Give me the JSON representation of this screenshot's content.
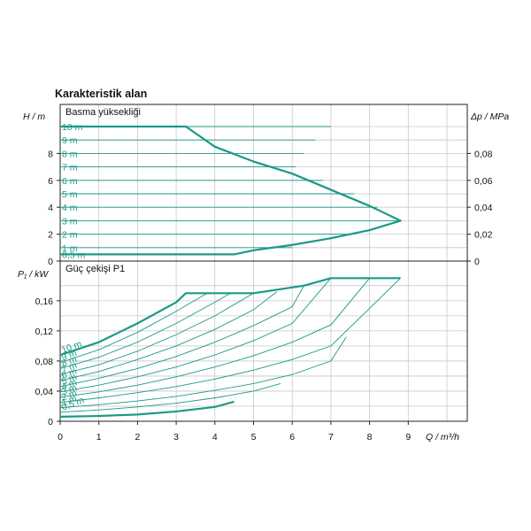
{
  "chart_data": [
    {
      "type": "line",
      "panel": "head",
      "title": "Karakteristik alan",
      "subtitle": "Basma yüksekliği",
      "xlabel": "Q / m³/h",
      "ylabel": "H / m",
      "ylabel_right": "Δp / MPa",
      "xlim": [
        0,
        10.5
      ],
      "ylim": [
        0,
        10.5
      ],
      "x_ticks": [
        "0",
        "1",
        "2",
        "3",
        "4",
        "5",
        "6",
        "7",
        "8",
        "9"
      ],
      "y_ticks": [
        {
          "v": 0,
          "label": "0"
        },
        {
          "v": 2,
          "label": "2"
        },
        {
          "v": 4,
          "label": "4"
        },
        {
          "v": 6,
          "label": "6"
        },
        {
          "v": 8,
          "label": "8"
        }
      ],
      "y_ticks_right": [
        {
          "v": 0,
          "label": "0"
        },
        {
          "v": 2,
          "label": "0,02"
        },
        {
          "v": 4,
          "label": "0,04"
        },
        {
          "v": 6,
          "label": "0,06"
        },
        {
          "v": 8,
          "label": "0,08"
        }
      ],
      "grid": true,
      "color": "#1a9a86",
      "series": [
        {
          "name": "10 m",
          "x": [
            0,
            7.0
          ],
          "y": [
            10,
            10
          ]
        },
        {
          "name": "9 m",
          "x": [
            0,
            6.6
          ],
          "y": [
            9,
            9
          ]
        },
        {
          "name": "8 m",
          "x": [
            0,
            6.3
          ],
          "y": [
            8,
            8
          ]
        },
        {
          "name": "7 m",
          "x": [
            0,
            6.1
          ],
          "y": [
            7,
            7
          ]
        },
        {
          "name": "6 m",
          "x": [
            0,
            6.8
          ],
          "y": [
            6,
            6
          ]
        },
        {
          "name": "5 m",
          "x": [
            0,
            7.6
          ],
          "y": [
            5,
            5
          ]
        },
        {
          "name": "4 m",
          "x": [
            0,
            8.2
          ],
          "y": [
            4,
            4
          ]
        },
        {
          "name": "3 m",
          "x": [
            0,
            8.8
          ],
          "y": [
            3,
            3
          ]
        },
        {
          "name": "2 m",
          "x": [
            0,
            7.4
          ],
          "y": [
            2,
            2
          ]
        },
        {
          "name": "1 m",
          "x": [
            0,
            6.0
          ],
          "y": [
            1,
            1
          ]
        },
        {
          "name": "0,5 m",
          "x": [
            0,
            4.5
          ],
          "y": [
            0.5,
            0.5
          ]
        }
      ],
      "envelope": {
        "x": [
          0,
          3.25,
          4.0,
          5.0,
          6.0,
          7.0,
          8.0,
          8.8,
          8.0,
          7.0,
          6.0,
          5.0,
          4.5,
          0
        ],
        "y": [
          10,
          10,
          8.5,
          7.4,
          6.5,
          5.3,
          4.1,
          3,
          2.3,
          1.7,
          1.2,
          0.8,
          0.5,
          0.5
        ]
      }
    },
    {
      "type": "line",
      "panel": "power",
      "title": "Güç çekişi P1",
      "xlabel": "Q / m³/h",
      "ylabel": "P₁ / kW",
      "xlim": [
        0,
        10.5
      ],
      "ylim": [
        0,
        0.19
      ],
      "x_ticks": [
        "0",
        "1",
        "2",
        "3",
        "4",
        "5",
        "6",
        "7",
        "8",
        "9"
      ],
      "y_ticks": [
        {
          "v": 0,
          "label": "0"
        },
        {
          "v": 0.04,
          "label": "0,04"
        },
        {
          "v": 0.08,
          "label": "0,08"
        },
        {
          "v": 0.12,
          "label": "0,12"
        },
        {
          "v": 0.16,
          "label": "0,16"
        }
      ],
      "grid": true,
      "color": "#1a9a86",
      "series": [
        {
          "name": "10 m",
          "x": [
            0,
            1,
            2,
            3,
            3.25
          ],
          "y": [
            0.088,
            0.105,
            0.13,
            0.158,
            0.17
          ]
        },
        {
          "name": "9 m",
          "x": [
            0,
            1,
            2,
            3,
            3.8
          ],
          "y": [
            0.078,
            0.095,
            0.118,
            0.146,
            0.17
          ]
        },
        {
          "name": "8 m",
          "x": [
            0,
            1,
            2,
            3,
            4,
            4.4
          ],
          "y": [
            0.07,
            0.085,
            0.105,
            0.13,
            0.158,
            0.17
          ]
        },
        {
          "name": "7 m",
          "x": [
            0,
            1,
            2,
            3,
            4,
            5.0
          ],
          "y": [
            0.062,
            0.075,
            0.093,
            0.115,
            0.14,
            0.17
          ]
        },
        {
          "name": "6 m",
          "x": [
            0,
            1,
            2,
            3,
            4,
            5,
            5.6
          ],
          "y": [
            0.054,
            0.066,
            0.082,
            0.1,
            0.122,
            0.148,
            0.172
          ]
        },
        {
          "name": "5 m",
          "x": [
            0,
            1,
            2,
            3,
            4,
            5,
            6,
            6.3
          ],
          "y": [
            0.046,
            0.057,
            0.07,
            0.086,
            0.105,
            0.127,
            0.152,
            0.18
          ]
        },
        {
          "name": "4 m",
          "x": [
            0,
            1,
            2,
            3,
            4,
            5,
            6,
            7.0
          ],
          "y": [
            0.039,
            0.048,
            0.059,
            0.072,
            0.088,
            0.107,
            0.13,
            0.19
          ]
        },
        {
          "name": "3 m",
          "x": [
            0,
            1,
            2,
            3,
            4,
            5,
            6,
            7,
            8.0
          ],
          "y": [
            0.032,
            0.039,
            0.048,
            0.059,
            0.072,
            0.087,
            0.105,
            0.128,
            0.19
          ]
        },
        {
          "name": "2 m",
          "x": [
            0,
            1,
            2,
            3,
            4,
            5,
            6,
            7,
            8.8
          ],
          "y": [
            0.025,
            0.031,
            0.038,
            0.046,
            0.056,
            0.068,
            0.082,
            0.1,
            0.19
          ]
        },
        {
          "name": "1 m",
          "x": [
            0,
            1,
            2,
            3,
            4,
            5,
            6,
            7,
            7.4
          ],
          "y": [
            0.018,
            0.022,
            0.027,
            0.033,
            0.041,
            0.05,
            0.062,
            0.08,
            0.112
          ]
        },
        {
          "name": "0,5 m",
          "x": [
            0,
            1,
            2,
            3,
            4,
            5,
            5.7
          ],
          "y": [
            0.012,
            0.015,
            0.019,
            0.024,
            0.031,
            0.04,
            0.05
          ]
        },
        {
          "name": "min",
          "x": [
            0,
            1,
            2,
            3,
            4,
            4.5
          ],
          "y": [
            0.006,
            0.007,
            0.009,
            0.013,
            0.019,
            0.026
          ]
        }
      ],
      "envelope": {
        "x": [
          0,
          1,
          2,
          3,
          3.25,
          5.0,
          6.3,
          7.0,
          8.8
        ],
        "y": [
          0.088,
          0.105,
          0.13,
          0.158,
          0.17,
          0.17,
          0.18,
          0.19,
          0.19
        ]
      }
    }
  ]
}
